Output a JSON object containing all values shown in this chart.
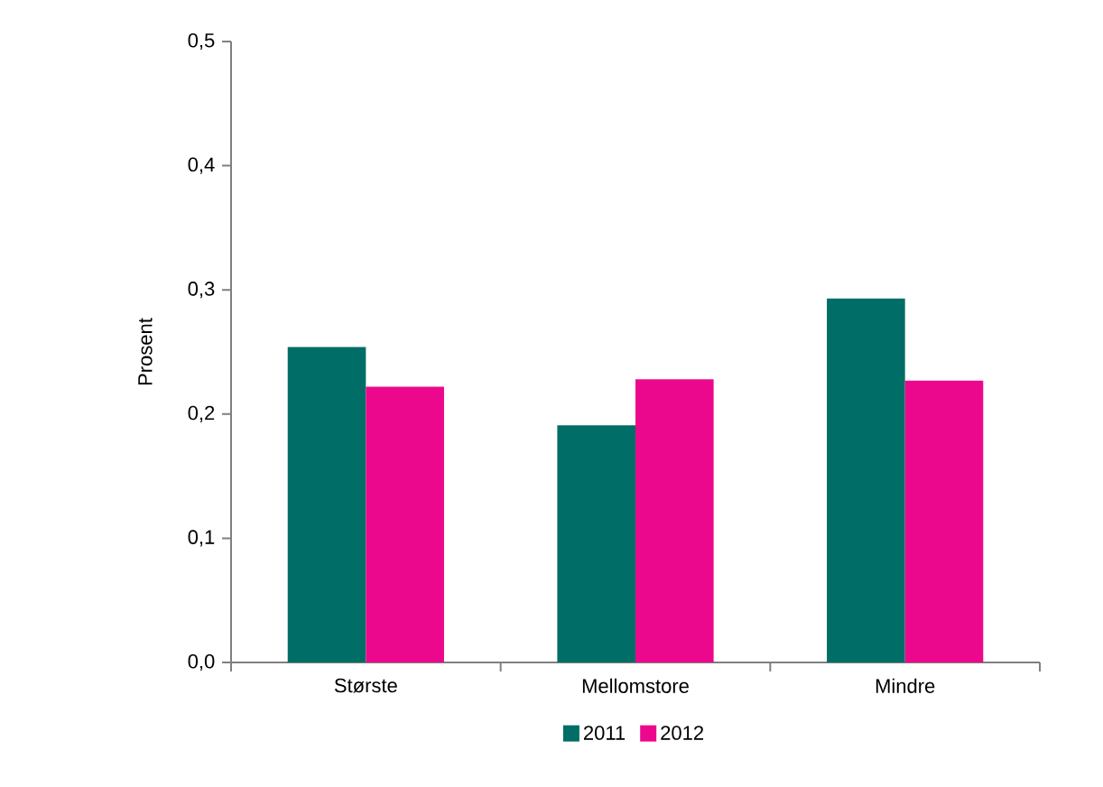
{
  "chart_data": {
    "type": "bar",
    "ylabel": "Prosent",
    "categories": [
      "Største",
      "Mellomstore",
      "Mindre"
    ],
    "series": [
      {
        "name": "2011",
        "color": "#006e66",
        "values": [
          0.254,
          0.191,
          0.293
        ]
      },
      {
        "name": "2012",
        "color": "#ec088c",
        "values": [
          0.222,
          0.228,
          0.227
        ]
      }
    ],
    "ylim": [
      0,
      0.5
    ],
    "yticks": [
      {
        "value": 0,
        "label": "0,0"
      },
      {
        "value": 0.1,
        "label": "0,1"
      },
      {
        "value": 0.2,
        "label": "0,2"
      },
      {
        "value": 0.3,
        "label": "0,3"
      },
      {
        "value": 0.4,
        "label": "0,4"
      },
      {
        "value": 0.5,
        "label": "0,5"
      }
    ],
    "grid": false,
    "legend": "bottom"
  }
}
